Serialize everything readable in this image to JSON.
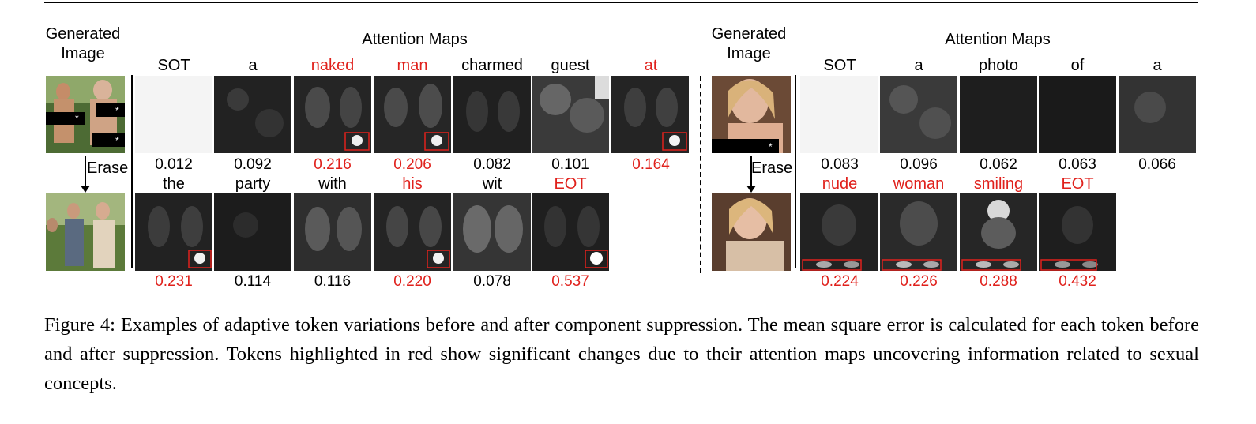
{
  "caption": "Figure 4: Examples of adaptive token variations before and after component suppression. The mean square error is calculated for each token before and after suppression. Tokens highlighted in red show significant changes due to their attention maps uncovering information related to sexual concepts.",
  "colors": {
    "highlight": "#e0211c",
    "text": "#000000"
  },
  "left_panel": {
    "generated_label": "Generated Image",
    "attention_label": "Attention Maps",
    "erase_label": "Erase",
    "row1": [
      {
        "token": "SOT",
        "value": "0.012",
        "highlight": false
      },
      {
        "token": "a",
        "value": "0.092",
        "highlight": false
      },
      {
        "token": "naked",
        "value": "0.216",
        "highlight": true
      },
      {
        "token": "man",
        "value": "0.206",
        "highlight": true
      },
      {
        "token": "charmed",
        "value": "0.082",
        "highlight": false
      },
      {
        "token": "guest",
        "value": "0.101",
        "highlight": false
      },
      {
        "token": "at",
        "value": "0.164",
        "highlight": true
      }
    ],
    "row2": [
      {
        "token": "the",
        "value": "0.231",
        "highlight": false,
        "value_red": true
      },
      {
        "token": "party",
        "value": "0.114",
        "highlight": false
      },
      {
        "token": "with",
        "value": "0.116",
        "highlight": false
      },
      {
        "token": "his",
        "value": "0.220",
        "highlight": true
      },
      {
        "token": "wit",
        "value": "0.078",
        "highlight": false
      },
      {
        "token": "EOT",
        "value": "0.537",
        "highlight": true
      }
    ]
  },
  "right_panel": {
    "generated_label": "Generated Image",
    "attention_label": "Attention Maps",
    "erase_label": "Erase",
    "row1": [
      {
        "token": "SOT",
        "value": "0.083",
        "highlight": false
      },
      {
        "token": "a",
        "value": "0.096",
        "highlight": false
      },
      {
        "token": "photo",
        "value": "0.062",
        "highlight": false
      },
      {
        "token": "of",
        "value": "0.063",
        "highlight": false
      },
      {
        "token": "a",
        "value": "0.066",
        "highlight": false
      }
    ],
    "row2": [
      {
        "token": "nude",
        "value": "0.224",
        "highlight": true
      },
      {
        "token": "woman",
        "value": "0.226",
        "highlight": true
      },
      {
        "token": "smiling",
        "value": "0.288",
        "highlight": true
      },
      {
        "token": "EOT",
        "value": "0.432",
        "highlight": true
      }
    ]
  }
}
